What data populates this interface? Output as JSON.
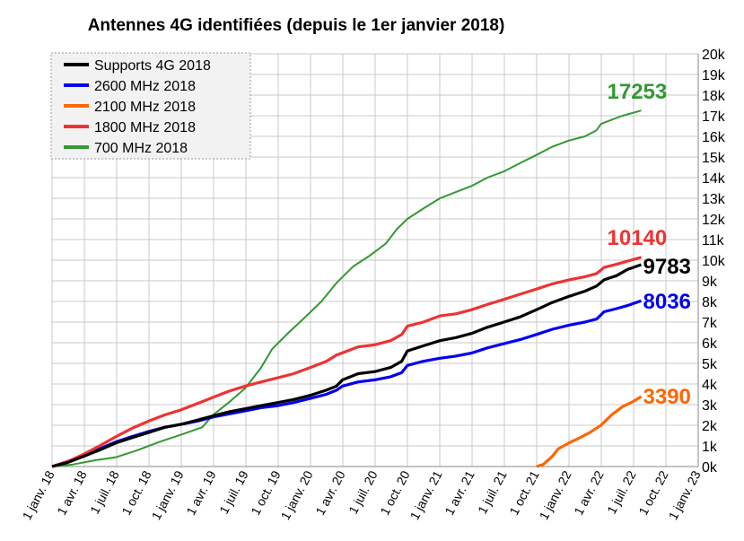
{
  "chart_data": {
    "type": "line",
    "title": "Antennes 4G identifiées (depuis le 1er janvier 2018)",
    "xlabel": "",
    "ylabel": "",
    "x_ticks": [
      "1 janv. 18",
      "1 avr. 18",
      "1 juil. 18",
      "1 oct. 18",
      "1 janv. 19",
      "1 avr. 19",
      "1 juil. 19",
      "1 oct. 19",
      "1 janv. 20",
      "1 avr. 20",
      "1 juil. 20",
      "1 oct. 20",
      "1 janv. 21",
      "1 avr. 21",
      "1 juil. 21",
      "1 oct. 21",
      "1 janv. 22",
      "1 avr. 22",
      "1 juil. 22",
      "1 oct. 22",
      "1 janv. 23"
    ],
    "y_ticks": [
      "0k",
      "1k",
      "2k",
      "3k",
      "4k",
      "5k",
      "6k",
      "7k",
      "8k",
      "9k",
      "10k",
      "11k",
      "12k",
      "13k",
      "14k",
      "15k",
      "16k",
      "17k",
      "18k",
      "19k",
      "20k"
    ],
    "ylim": [
      0,
      20000
    ],
    "y_axis_side": "right",
    "grid": true,
    "legend_position": "top-left",
    "series": [
      {
        "name": "Supports 4G 2018",
        "color": "#000000",
        "end_label": "9783",
        "points": [
          [
            "2018-01-01",
            0
          ],
          [
            "2018-02-15",
            200
          ],
          [
            "2018-04-01",
            500
          ],
          [
            "2018-05-15",
            800
          ],
          [
            "2018-07-01",
            1150
          ],
          [
            "2018-08-15",
            1400
          ],
          [
            "2018-10-01",
            1650
          ],
          [
            "2018-11-15",
            1900
          ],
          [
            "2019-01-01",
            2050
          ],
          [
            "2019-02-15",
            2250
          ],
          [
            "2019-04-01",
            2450
          ],
          [
            "2019-05-15",
            2650
          ],
          [
            "2019-07-01",
            2800
          ],
          [
            "2019-08-15",
            2950
          ],
          [
            "2019-10-01",
            3100
          ],
          [
            "2019-11-15",
            3250
          ],
          [
            "2020-01-01",
            3450
          ],
          [
            "2020-02-15",
            3700
          ],
          [
            "2020-03-15",
            3900
          ],
          [
            "2020-04-01",
            4200
          ],
          [
            "2020-05-15",
            4500
          ],
          [
            "2020-07-01",
            4600
          ],
          [
            "2020-08-15",
            4800
          ],
          [
            "2020-09-15",
            5100
          ],
          [
            "2020-10-01",
            5600
          ],
          [
            "2020-11-15",
            5850
          ],
          [
            "2021-01-01",
            6100
          ],
          [
            "2021-02-15",
            6250
          ],
          [
            "2021-04-01",
            6450
          ],
          [
            "2021-05-15",
            6750
          ],
          [
            "2021-07-01",
            7000
          ],
          [
            "2021-08-15",
            7250
          ],
          [
            "2021-10-01",
            7600
          ],
          [
            "2021-11-15",
            7950
          ],
          [
            "2022-01-01",
            8250
          ],
          [
            "2022-02-15",
            8500
          ],
          [
            "2022-03-20",
            8750
          ],
          [
            "2022-04-10",
            9050
          ],
          [
            "2022-05-15",
            9250
          ],
          [
            "2022-06-15",
            9550
          ],
          [
            "2022-07-24",
            9783
          ]
        ]
      },
      {
        "name": "2600 MHz 2018",
        "color": "#0000ee",
        "end_label": "8036",
        "points": [
          [
            "2018-01-01",
            0
          ],
          [
            "2018-02-15",
            250
          ],
          [
            "2018-04-01",
            550
          ],
          [
            "2018-05-15",
            850
          ],
          [
            "2018-07-01",
            1200
          ],
          [
            "2018-08-15",
            1450
          ],
          [
            "2018-10-01",
            1700
          ],
          [
            "2018-11-15",
            1900
          ],
          [
            "2019-01-01",
            2050
          ],
          [
            "2019-02-15",
            2200
          ],
          [
            "2019-04-01",
            2400
          ],
          [
            "2019-05-15",
            2550
          ],
          [
            "2019-07-01",
            2700
          ],
          [
            "2019-08-15",
            2850
          ],
          [
            "2019-10-01",
            2950
          ],
          [
            "2019-11-15",
            3100
          ],
          [
            "2020-01-01",
            3300
          ],
          [
            "2020-02-15",
            3500
          ],
          [
            "2020-03-15",
            3700
          ],
          [
            "2020-04-01",
            3900
          ],
          [
            "2020-05-15",
            4100
          ],
          [
            "2020-07-01",
            4200
          ],
          [
            "2020-08-15",
            4350
          ],
          [
            "2020-09-15",
            4550
          ],
          [
            "2020-10-01",
            4900
          ],
          [
            "2020-11-15",
            5100
          ],
          [
            "2021-01-01",
            5250
          ],
          [
            "2021-02-15",
            5350
          ],
          [
            "2021-04-01",
            5500
          ],
          [
            "2021-05-15",
            5750
          ],
          [
            "2021-07-01",
            5950
          ],
          [
            "2021-08-15",
            6150
          ],
          [
            "2021-10-01",
            6400
          ],
          [
            "2021-11-15",
            6650
          ],
          [
            "2022-01-01",
            6850
          ],
          [
            "2022-02-15",
            7000
          ],
          [
            "2022-03-20",
            7150
          ],
          [
            "2022-04-10",
            7500
          ],
          [
            "2022-05-15",
            7650
          ],
          [
            "2022-06-15",
            7800
          ],
          [
            "2022-07-24",
            8036
          ]
        ]
      },
      {
        "name": "2100 MHz 2018",
        "color": "#ff6600",
        "end_label": "3390",
        "points": [
          [
            "2021-10-01",
            0
          ],
          [
            "2021-10-20",
            100
          ],
          [
            "2021-11-15",
            500
          ],
          [
            "2021-12-01",
            850
          ],
          [
            "2022-01-01",
            1150
          ],
          [
            "2022-02-01",
            1400
          ],
          [
            "2022-03-01",
            1650
          ],
          [
            "2022-04-01",
            2000
          ],
          [
            "2022-05-01",
            2500
          ],
          [
            "2022-06-01",
            2900
          ],
          [
            "2022-07-01",
            3150
          ],
          [
            "2022-07-24",
            3390
          ]
        ]
      },
      {
        "name": "1800 MHz 2018",
        "color": "#ee3333",
        "end_label": "10140",
        "points": [
          [
            "2018-01-01",
            0
          ],
          [
            "2018-02-15",
            250
          ],
          [
            "2018-04-01",
            600
          ],
          [
            "2018-05-15",
            1000
          ],
          [
            "2018-07-01",
            1450
          ],
          [
            "2018-08-15",
            1850
          ],
          [
            "2018-10-01",
            2200
          ],
          [
            "2018-11-15",
            2500
          ],
          [
            "2019-01-01",
            2750
          ],
          [
            "2019-02-15",
            3050
          ],
          [
            "2019-04-01",
            3350
          ],
          [
            "2019-05-15",
            3650
          ],
          [
            "2019-07-01",
            3900
          ],
          [
            "2019-08-15",
            4100
          ],
          [
            "2019-10-01",
            4300
          ],
          [
            "2019-11-15",
            4500
          ],
          [
            "2020-01-01",
            4800
          ],
          [
            "2020-02-15",
            5100
          ],
          [
            "2020-03-15",
            5400
          ],
          [
            "2020-05-15",
            5800
          ],
          [
            "2020-07-01",
            5900
          ],
          [
            "2020-08-15",
            6100
          ],
          [
            "2020-09-15",
            6400
          ],
          [
            "2020-10-01",
            6800
          ],
          [
            "2020-11-15",
            7000
          ],
          [
            "2021-01-01",
            7300
          ],
          [
            "2021-02-15",
            7400
          ],
          [
            "2021-04-01",
            7600
          ],
          [
            "2021-05-15",
            7850
          ],
          [
            "2021-07-01",
            8100
          ],
          [
            "2021-08-15",
            8350
          ],
          [
            "2021-10-01",
            8600
          ],
          [
            "2021-11-15",
            8850
          ],
          [
            "2022-01-01",
            9050
          ],
          [
            "2022-02-15",
            9200
          ],
          [
            "2022-03-20",
            9350
          ],
          [
            "2022-04-10",
            9650
          ],
          [
            "2022-05-15",
            9800
          ],
          [
            "2022-06-15",
            9950
          ],
          [
            "2022-07-24",
            10140
          ]
        ]
      },
      {
        "name": "700 MHz 2018",
        "color": "#339933",
        "end_label": "17253",
        "points": [
          [
            "2018-01-01",
            0
          ],
          [
            "2018-03-01",
            100
          ],
          [
            "2018-05-01",
            300
          ],
          [
            "2018-07-01",
            450
          ],
          [
            "2018-09-01",
            800
          ],
          [
            "2018-11-01",
            1200
          ],
          [
            "2019-01-01",
            1550
          ],
          [
            "2019-03-01",
            1900
          ],
          [
            "2019-04-01",
            2500
          ],
          [
            "2019-05-15",
            3100
          ],
          [
            "2019-07-01",
            3800
          ],
          [
            "2019-08-15",
            4800
          ],
          [
            "2019-09-15",
            5700
          ],
          [
            "2019-11-01",
            6500
          ],
          [
            "2019-12-15",
            7200
          ],
          [
            "2020-02-01",
            8000
          ],
          [
            "2020-03-15",
            8900
          ],
          [
            "2020-05-01",
            9700
          ],
          [
            "2020-06-15",
            10200
          ],
          [
            "2020-08-01",
            10800
          ],
          [
            "2020-09-01",
            11500
          ],
          [
            "2020-10-01",
            12000
          ],
          [
            "2020-11-15",
            12500
          ],
          [
            "2021-01-01",
            13000
          ],
          [
            "2021-02-15",
            13300
          ],
          [
            "2021-04-01",
            13600
          ],
          [
            "2021-05-15",
            14000
          ],
          [
            "2021-07-01",
            14300
          ],
          [
            "2021-08-15",
            14700
          ],
          [
            "2021-10-01",
            15100
          ],
          [
            "2021-11-15",
            15500
          ],
          [
            "2022-01-01",
            15800
          ],
          [
            "2022-02-15",
            16000
          ],
          [
            "2022-03-20",
            16300
          ],
          [
            "2022-04-01",
            16600
          ],
          [
            "2022-05-01",
            16800
          ],
          [
            "2022-06-01",
            17000
          ],
          [
            "2022-07-24",
            17253
          ]
        ]
      }
    ]
  }
}
